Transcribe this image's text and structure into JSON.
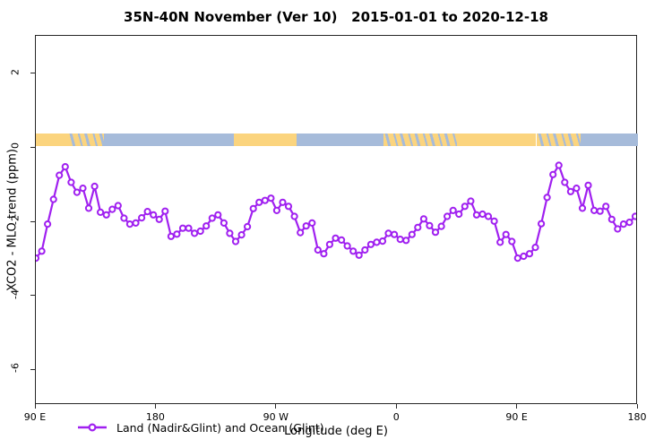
{
  "title": "35N-40N November (Ver 10)   2015-01-01 to 2020-12-18",
  "colors": {
    "series": "#A020F0",
    "marker_fill": "#ffffff",
    "land": "#FBD47E",
    "ocean": "#A6BBDA",
    "axis": "#262626"
  },
  "legend": {
    "label": "Land (Nadir&Glint) and Ocean (Glint)"
  },
  "chart_data": {
    "type": "line",
    "title": "35N-40N November (Ver 10)   2015-01-01 to 2020-12-18",
    "xlabel": "Longitude (deg E)",
    "ylabel": "XCO2 - MLO trend (ppm)",
    "xlim": [
      90,
      540
    ],
    "ylim": [
      -6.94,
      3.04
    ],
    "grid": false,
    "legend_position": "bottom-left",
    "x_ticks": [
      {
        "deg": 90,
        "label": "90 E"
      },
      {
        "deg": 180,
        "label": "180"
      },
      {
        "deg": 270,
        "label": "90 W"
      },
      {
        "deg": 360,
        "label": "0"
      },
      {
        "deg": 450,
        "label": "90 E"
      },
      {
        "deg": 540,
        "label": "180"
      }
    ],
    "y_ticks": [
      {
        "value": 2,
        "label": "2"
      },
      {
        "value": 0,
        "label": "0"
      },
      {
        "value": -2,
        "label": "-2"
      },
      {
        "value": -4,
        "label": "-4"
      },
      {
        "value": -6,
        "label": "-6"
      }
    ],
    "surface_band": {
      "description": "land/ocean strip along 35N-40N",
      "y_top_value": 0.4,
      "y_bottom_value": 0.06,
      "segments": [
        {
          "from": 90,
          "to": 114,
          "surface": "land"
        },
        {
          "from": 114,
          "to": 141,
          "surface": "mixed"
        },
        {
          "from": 141,
          "to": 238,
          "surface": "ocean"
        },
        {
          "from": 238,
          "to": 285,
          "surface": "land"
        },
        {
          "from": 285,
          "to": 350,
          "surface": "ocean"
        },
        {
          "from": 350,
          "to": 405,
          "surface": "mixed"
        },
        {
          "from": 405,
          "to": 464,
          "surface": "land"
        },
        {
          "from": 464,
          "to": 497,
          "surface": "mixed"
        },
        {
          "from": 497,
          "to": 540,
          "surface": "ocean"
        }
      ]
    },
    "series": [
      {
        "name": "Land (Nadir&Glint) and Ocean (Glint)",
        "marker": "open-circle",
        "color": "#A020F0",
        "x_start_deg": 90,
        "x_end_deg": 538,
        "values": [
          -2.97,
          -2.78,
          -2.05,
          -1.38,
          -0.73,
          -0.5,
          -0.92,
          -1.19,
          -1.08,
          -1.62,
          -1.03,
          -1.73,
          -1.8,
          -1.65,
          -1.55,
          -1.89,
          -2.05,
          -2.02,
          -1.88,
          -1.71,
          -1.8,
          -1.92,
          -1.7,
          -2.38,
          -2.32,
          -2.16,
          -2.16,
          -2.3,
          -2.24,
          -2.1,
          -1.89,
          -1.8,
          -2.02,
          -2.3,
          -2.52,
          -2.34,
          -2.12,
          -1.63,
          -1.46,
          -1.41,
          -1.35,
          -1.68,
          -1.46,
          -1.57,
          -1.84,
          -2.28,
          -2.1,
          -2.02,
          -2.75,
          -2.85,
          -2.6,
          -2.43,
          -2.48,
          -2.64,
          -2.78,
          -2.89,
          -2.75,
          -2.6,
          -2.54,
          -2.51,
          -2.3,
          -2.33,
          -2.46,
          -2.49,
          -2.33,
          -2.14,
          -1.91,
          -2.09,
          -2.27,
          -2.11,
          -1.84,
          -1.68,
          -1.78,
          -1.57,
          -1.43,
          -1.8,
          -1.78,
          -1.84,
          -1.97,
          -2.54,
          -2.33,
          -2.52,
          -2.97,
          -2.92,
          -2.85,
          -2.68,
          -2.04,
          -1.33,
          -0.71,
          -0.46,
          -0.92,
          -1.17,
          -1.08,
          -1.62,
          -1.0,
          -1.68,
          -1.7,
          -1.57,
          -1.92,
          -2.18,
          -2.05,
          -2.0,
          -1.84
        ]
      }
    ]
  }
}
